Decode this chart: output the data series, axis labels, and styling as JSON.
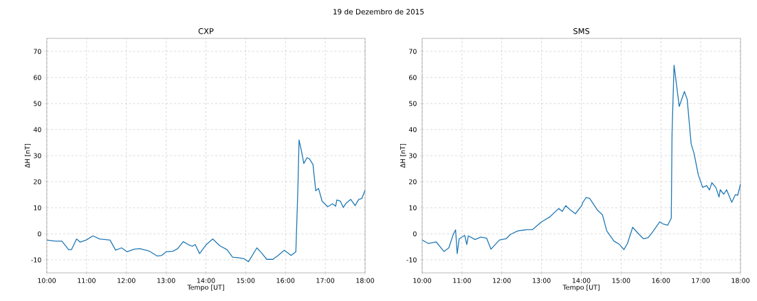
{
  "chart_data": [
    {
      "type": "line",
      "title": "CXP",
      "xlabel": "Tempo [UT]",
      "ylabel": "ΔH [nT]",
      "annotations": [
        "19 de Dezembro de 2015"
      ],
      "color": "#1f77b4",
      "grid": true,
      "xlim": [
        10,
        18
      ],
      "ylim": [
        -15,
        75
      ],
      "xticks": [
        {
          "value": 10,
          "label": "10:00"
        },
        {
          "value": 11,
          "label": "11:00"
        },
        {
          "value": 12,
          "label": "12:00"
        },
        {
          "value": 13,
          "label": "13:00"
        },
        {
          "value": 14,
          "label": "14:00"
        },
        {
          "value": 15,
          "label": "15:00"
        },
        {
          "value": 16,
          "label": "16:00"
        },
        {
          "value": 17,
          "label": "17:00"
        },
        {
          "value": 18,
          "label": "18:00"
        }
      ],
      "yticks": [
        -10,
        0,
        10,
        20,
        30,
        40,
        50,
        60,
        70
      ],
      "x": [
        10,
        10.21,
        10.38,
        10.55,
        10.62,
        10.75,
        10.84,
        10.99,
        11.16,
        11.33,
        11.59,
        11.73,
        11.88,
        12.02,
        12.2,
        12.34,
        12.57,
        12.77,
        12.89,
        13.0,
        13.17,
        13.29,
        13.43,
        13.55,
        13.66,
        13.73,
        13.84,
        14.0,
        14.17,
        14.35,
        14.53,
        14.67,
        14.82,
        14.96,
        15.07,
        15.28,
        15.39,
        15.53,
        15.68,
        15.8,
        15.97,
        16.14,
        16.26,
        16.31,
        16.34,
        16.4,
        16.46,
        16.54,
        16.6,
        16.69,
        16.76,
        16.83,
        16.92,
        17.06,
        17.18,
        17.26,
        17.29,
        17.38,
        17.45,
        17.52,
        17.64,
        17.75,
        17.84,
        17.92,
        18.0
      ],
      "values": [
        -2.4,
        -2.8,
        -2.8,
        -6.1,
        -6.1,
        -2,
        -3.2,
        -2.4,
        -0.8,
        -2,
        -2.4,
        -6.3,
        -5.4,
        -6.9,
        -5.9,
        -5.7,
        -6.6,
        -8.5,
        -8.3,
        -6.9,
        -6.7,
        -5.7,
        -3,
        -4.1,
        -4.8,
        -4.1,
        -7.6,
        -4.3,
        -2,
        -4.6,
        -6.1,
        -9,
        -9.2,
        -9.6,
        -10.7,
        -5.4,
        -7.2,
        -9.8,
        -9.8,
        -8.5,
        -6.3,
        -8.3,
        -6.9,
        16.9,
        36,
        31.8,
        27,
        29.2,
        28.8,
        26.6,
        16.5,
        17.4,
        12.5,
        10.4,
        11.5,
        10.6,
        13,
        12.5,
        10.1,
        11.7,
        13.2,
        10.8,
        13.2,
        13.6,
        16.8
      ]
    },
    {
      "type": "line",
      "title": "SMS",
      "xlabel": "Tempo [UT]",
      "ylabel": "ΔH [nT]",
      "color": "#1f77b4",
      "grid": true,
      "xlim": [
        10,
        18
      ],
      "ylim": [
        -15,
        75
      ],
      "xticks": [
        {
          "value": 10,
          "label": "10:00"
        },
        {
          "value": 11,
          "label": "11:00"
        },
        {
          "value": 12,
          "label": "12:00"
        },
        {
          "value": 13,
          "label": "13:00"
        },
        {
          "value": 14,
          "label": "14:00"
        },
        {
          "value": 15,
          "label": "15:00"
        },
        {
          "value": 16,
          "label": "16:00"
        },
        {
          "value": 17,
          "label": "17:00"
        },
        {
          "value": 18,
          "label": "18:00"
        }
      ],
      "yticks": [
        -10,
        0,
        10,
        20,
        30,
        40,
        50,
        60,
        70
      ],
      "x": [
        10,
        10.15,
        10.35,
        10.55,
        10.67,
        10.78,
        10.84,
        10.88,
        10.93,
        11.07,
        11.12,
        11.16,
        11.33,
        11.47,
        11.62,
        11.73,
        11.94,
        12.11,
        12.22,
        12.4,
        12.63,
        12.77,
        13.0,
        13.2,
        13.43,
        13.52,
        13.61,
        13.72,
        13.85,
        14.01,
        14.04,
        14.12,
        14.21,
        14.41,
        14.53,
        14.64,
        14.82,
        14.96,
        15.07,
        15.16,
        15.29,
        15.45,
        15.56,
        15.68,
        15.79,
        15.97,
        16.05,
        16.17,
        16.26,
        16.28,
        16.33,
        16.37,
        16.46,
        16.59,
        16.66,
        16.76,
        16.83,
        16.94,
        17.05,
        17.15,
        17.22,
        17.28,
        17.38,
        17.46,
        17.49,
        17.58,
        17.65,
        17.78,
        17.87,
        17.93,
        18.0
      ],
      "values": [
        -2.4,
        -3.7,
        -3.1,
        -6.8,
        -5.4,
        -0.3,
        1.5,
        -7.6,
        -1.9,
        -0.6,
        -4.1,
        -0.8,
        -2.2,
        -1.3,
        -1.7,
        -5.9,
        -2.4,
        -1.9,
        -0.2,
        1.1,
        1.6,
        1.6,
        4.6,
        6.4,
        9.7,
        8.6,
        10.8,
        9.2,
        7.7,
        10.8,
        12.1,
        13.9,
        13.6,
        9,
        7.3,
        1.1,
        -2.8,
        -4.1,
        -6.1,
        -3.7,
        2.5,
        -0.2,
        -1.9,
        -1.5,
        0.7,
        4.6,
        3.8,
        3.3,
        6,
        38.9,
        64.7,
        59.9,
        48.9,
        54.6,
        51.6,
        34.5,
        31,
        22.6,
        17.8,
        18.5,
        16.8,
        19.6,
        17.8,
        14.1,
        16.9,
        15.2,
        16.9,
        12.1,
        15,
        14.8,
        19.1
      ]
    }
  ]
}
